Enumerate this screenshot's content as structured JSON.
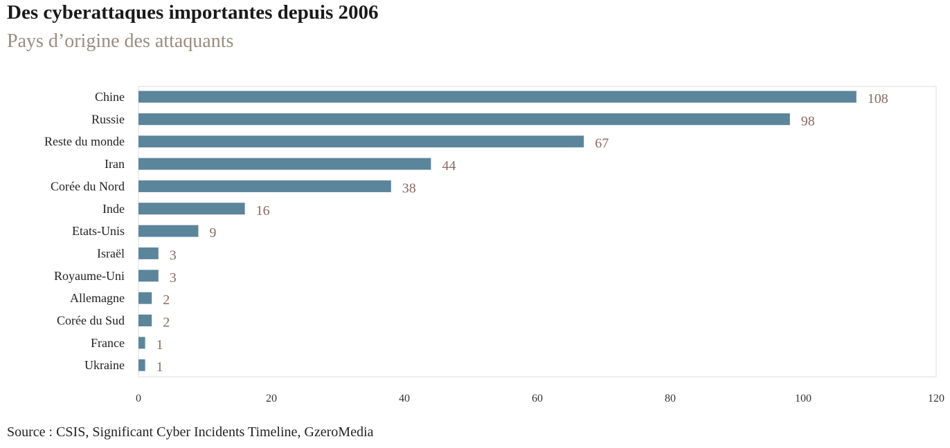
{
  "header": {
    "title": "Des cyberattaques importantes depuis 2006",
    "subtitle": "Pays d’origine des attaquants"
  },
  "footer": {
    "source": "Source : CSIS, Significant Cyber Incidents Timeline, GzeroMedia"
  },
  "colors": {
    "bar": "#5b859b",
    "value_label": "#8a6a62",
    "subtitle": "#9a8c80",
    "frame": "#dcdcdc"
  },
  "chart_data": {
    "type": "bar",
    "orientation": "horizontal",
    "title": "Des cyberattaques importantes depuis 2006",
    "subtitle": "Pays d’origine des attaquants",
    "categories": [
      "Chine",
      "Russie",
      "Reste du monde",
      "Iran",
      "Corée du Nord",
      "Inde",
      "Etats-Unis",
      "Israël",
      "Royaume-Uni",
      "Allemagne",
      "Corée du Sud",
      "France",
      "Ukraine"
    ],
    "values": [
      108,
      98,
      67,
      44,
      38,
      16,
      9,
      3,
      3,
      2,
      2,
      1,
      1
    ],
    "xlim": [
      0,
      120
    ],
    "xticks": [
      0,
      20,
      40,
      60,
      80,
      100,
      120
    ],
    "xlabel": "",
    "ylabel": "",
    "grid": false,
    "data_labels": true,
    "legend": "none"
  }
}
